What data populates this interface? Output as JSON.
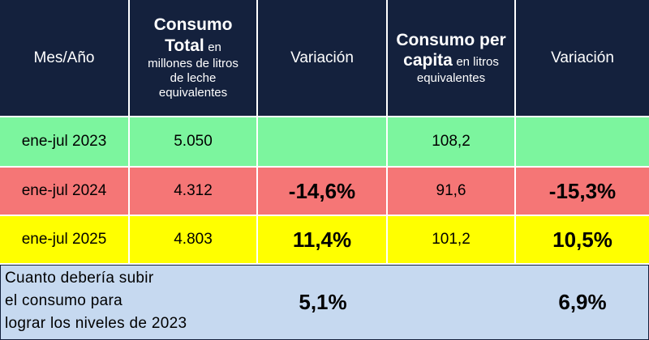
{
  "header": {
    "mes": "Mes/Año",
    "total_bold_1": "Consumo",
    "total_bold_2": "Total",
    "total_rest_1": "en",
    "total_rest_2": "millones de litros",
    "total_rest_3": "de leche",
    "total_rest_4": "equivalentes",
    "variacion_1": "Variación",
    "percap_bold_1": "Consumo per",
    "percap_bold_2": "capita",
    "percap_rest_1": "en litros",
    "percap_rest_2": "equivalentes",
    "variacion_2": "Variación"
  },
  "rows": [
    {
      "period": "ene-jul 2023",
      "total": "5.050",
      "var_total": "",
      "per_capita": "108,2",
      "var_per_capita": ""
    },
    {
      "period": "ene-jul 2024",
      "total": "4.312",
      "var_total": "-14,6%",
      "per_capita": "91,6",
      "var_per_capita": "-15,3%"
    },
    {
      "period": "ene-jul 2025",
      "total": "4.803",
      "var_total": "11,4%",
      "per_capita": "101,2",
      "var_per_capita": "10,5%"
    }
  ],
  "footer": {
    "line1": "Cuanto debería subir",
    "line2": "el consumo para",
    "line3": "lograr los niveles de 2023",
    "total_needed": "5,1%",
    "per_capita_needed": "6,9%"
  },
  "colors": {
    "header_bg": "#14213d",
    "row_2023": "#7cf59e",
    "row_2024": "#f57676",
    "row_2025": "#ffff00",
    "footer_bg": "#c6d9f0"
  }
}
